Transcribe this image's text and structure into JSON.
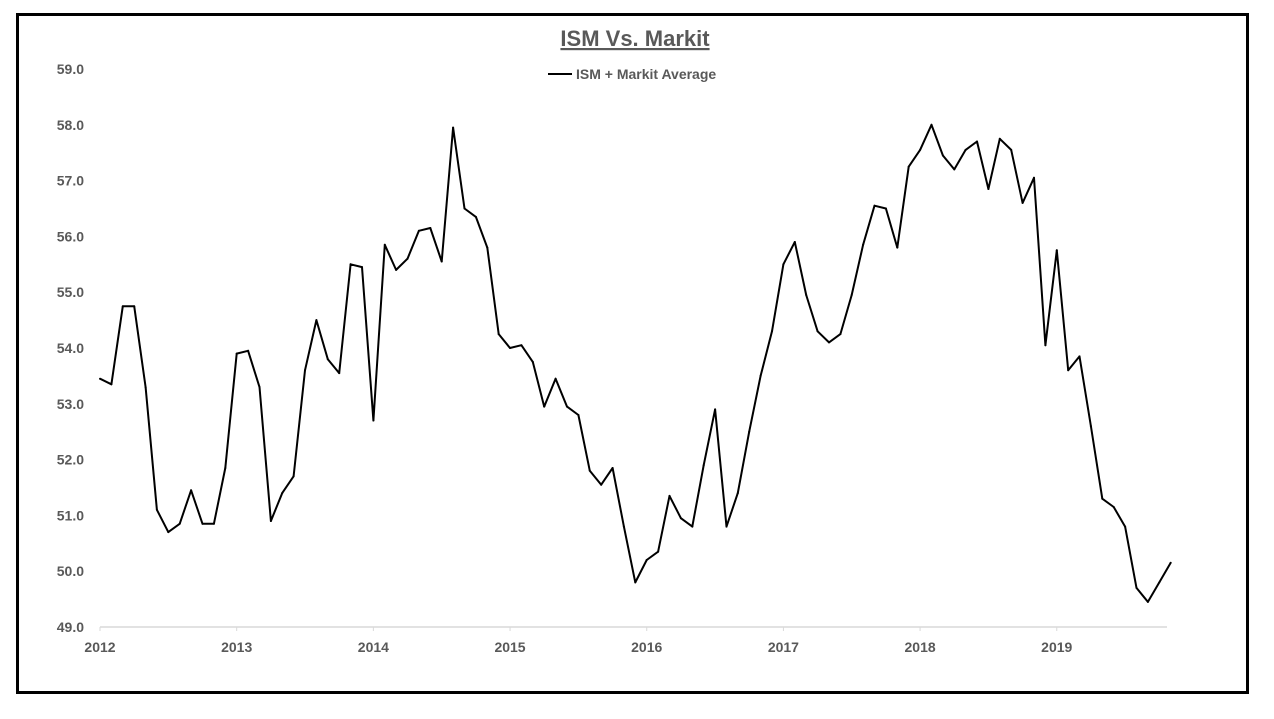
{
  "chart_data": {
    "type": "line",
    "title": "ISM Vs. Markit",
    "xlabel": "",
    "ylabel": "",
    "ylim": [
      49.0,
      59.0
    ],
    "yticks": [
      "59.0",
      "58.0",
      "57.0",
      "56.0",
      "55.0",
      "54.0",
      "53.0",
      "52.0",
      "51.0",
      "50.0",
      "49.0"
    ],
    "xticks": [
      "2012",
      "2013",
      "2014",
      "2015",
      "2016",
      "2017",
      "2018",
      "2019"
    ],
    "legend_position": "top-center",
    "grid": false,
    "colors": {
      "line": "#000000",
      "axis": "#d9d9d9",
      "text": "#595959"
    },
    "series": [
      {
        "name": "ISM + Markit Average",
        "start": "2012-01",
        "frequency": "monthly",
        "values": [
          53.45,
          53.35,
          54.75,
          54.75,
          53.3,
          51.1,
          50.7,
          50.85,
          51.45,
          50.85,
          50.85,
          51.85,
          53.9,
          53.95,
          53.3,
          50.9,
          51.4,
          51.7,
          53.6,
          54.5,
          53.8,
          53.55,
          55.5,
          55.45,
          52.7,
          55.85,
          55.4,
          55.6,
          56.1,
          56.15,
          55.55,
          57.95,
          56.5,
          56.35,
          55.8,
          54.25,
          54.0,
          54.05,
          53.75,
          52.95,
          53.45,
          52.95,
          52.8,
          51.8,
          51.55,
          51.85,
          50.8,
          49.8,
          50.2,
          50.35,
          51.35,
          50.95,
          50.8,
          51.9,
          52.9,
          50.8,
          51.4,
          52.5,
          53.5,
          54.3,
          55.5,
          55.9,
          54.95,
          54.3,
          54.1,
          54.25,
          54.95,
          55.85,
          56.55,
          56.5,
          55.8,
          57.25,
          57.55,
          58.0,
          57.45,
          57.2,
          57.55,
          57.7,
          56.85,
          57.75,
          57.55,
          56.6,
          57.05,
          54.05,
          55.75,
          53.6,
          53.85,
          52.6,
          51.3,
          51.15,
          50.8,
          49.7,
          49.45,
          49.8,
          50.15
        ]
      }
    ]
  }
}
